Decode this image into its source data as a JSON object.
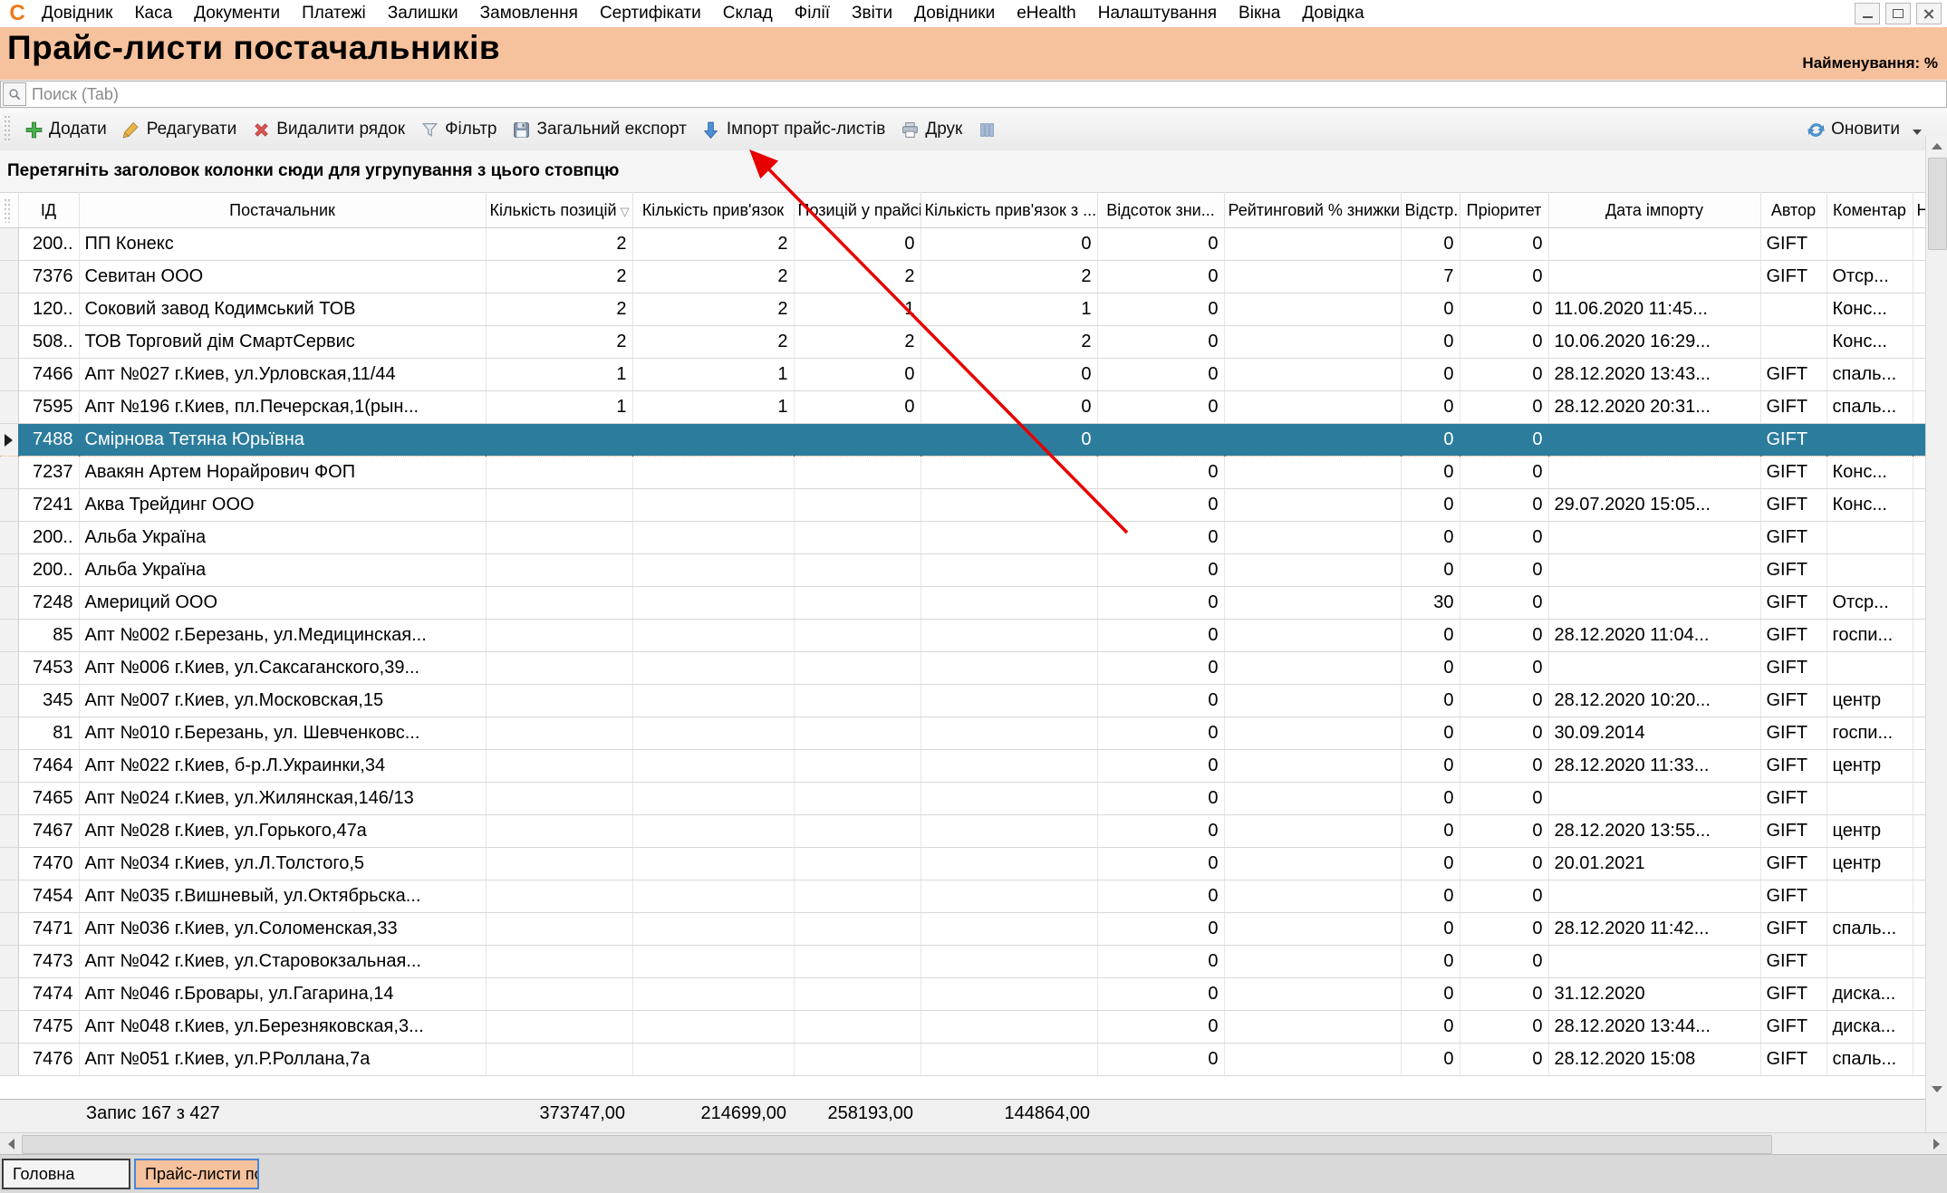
{
  "menu": {
    "items": [
      "Довідник",
      "Каса",
      "Документи",
      "Платежі",
      "Залишки",
      "Замовлення",
      "Сертифікати",
      "Склад",
      "Філії",
      "Звіти",
      "Довідники",
      "eHealth",
      "Налаштування",
      "Вікна",
      "Довідка"
    ]
  },
  "header": {
    "title": "Прайс-листи постачальників",
    "right_label": "Найменування: %"
  },
  "search": {
    "placeholder": "Поиск (Tab)"
  },
  "toolbar": {
    "buttons": [
      {
        "label": "Додати",
        "icon": "add-plus-icon"
      },
      {
        "label": "Редагувати",
        "icon": "edit-pencil-icon"
      },
      {
        "label": "Видалити рядок",
        "icon": "delete-x-icon"
      },
      {
        "label": "Фільтр",
        "icon": "filter-funnel-icon"
      },
      {
        "label": "Загальний експорт",
        "icon": "export-floppy-icon"
      },
      {
        "label": "Імпорт прайс-листів",
        "icon": "import-arrow-icon"
      },
      {
        "label": "Друк",
        "icon": "print-printer-icon"
      },
      {
        "label": "",
        "icon": "columns-grid-icon"
      }
    ],
    "refresh": {
      "label": "Оновити",
      "icon": "refresh-icon"
    }
  },
  "group_panel": {
    "text": "Перетягніть заголовок колонки сюди для угрупування з цього стовпцю"
  },
  "grid": {
    "columns": [
      {
        "key": "indicator",
        "label": ""
      },
      {
        "key": "id",
        "label": "ІД",
        "align": "right"
      },
      {
        "key": "name",
        "label": "Постачальник",
        "align": "left"
      },
      {
        "key": "qty_pos",
        "label": "Кількість позицій",
        "align": "right",
        "filter": true
      },
      {
        "key": "qty_links",
        "label": "Кількість прив'язок",
        "align": "right"
      },
      {
        "key": "pos_in_price",
        "label": "Позицій у прайсі",
        "align": "right"
      },
      {
        "key": "links_with",
        "label": "Кількість прив'язок з ...",
        "align": "right"
      },
      {
        "key": "discount_pct",
        "label": "Відсоток зни...",
        "align": "right"
      },
      {
        "key": "rating_pct",
        "label": "Рейтинговий % знижки",
        "align": "right"
      },
      {
        "key": "delay",
        "label": "Відстр...",
        "align": "right"
      },
      {
        "key": "priority",
        "label": "Пріоритет",
        "align": "right"
      },
      {
        "key": "import_date",
        "label": "Дата імпорту",
        "align": "left"
      },
      {
        "key": "author",
        "label": "Автор",
        "align": "left"
      },
      {
        "key": "comment",
        "label": "Коментар",
        "align": "left"
      },
      {
        "key": "extra",
        "label": "Н",
        "align": "left"
      }
    ],
    "rows": [
      {
        "id": "200..",
        "name": "ПП Конекс",
        "qty_pos": "2",
        "qty_links": "2",
        "pos_in_price": "0",
        "links_with": "0",
        "discount_pct": "0",
        "delay": "0",
        "priority": "0",
        "import_date": "",
        "author": "GIFT",
        "comment": ""
      },
      {
        "id": "7376",
        "name": "Севитан ООО",
        "qty_pos": "2",
        "qty_links": "2",
        "pos_in_price": "2",
        "links_with": "2",
        "discount_pct": "0",
        "delay": "7",
        "priority": "0",
        "import_date": "",
        "author": "GIFT",
        "comment": "Отср..."
      },
      {
        "id": "120..",
        "name": "Соковий завод Кодимський  ТОВ",
        "qty_pos": "2",
        "qty_links": "2",
        "pos_in_price": "1",
        "links_with": "1",
        "discount_pct": "0",
        "delay": "0",
        "priority": "0",
        "import_date": "11.06.2020 11:45...",
        "author": "",
        "comment": "Конс..."
      },
      {
        "id": "508..",
        "name": "ТОВ Торговий дім СмартСервис",
        "qty_pos": "2",
        "qty_links": "2",
        "pos_in_price": "2",
        "links_with": "2",
        "discount_pct": "0",
        "delay": "0",
        "priority": "0",
        "import_date": "10.06.2020 16:29...",
        "author": "",
        "comment": "Конс..."
      },
      {
        "id": "7466",
        "name": "Апт №027 г.Киев, ул.Урловская,11/44",
        "qty_pos": "1",
        "qty_links": "1",
        "pos_in_price": "0",
        "links_with": "0",
        "discount_pct": "0",
        "delay": "0",
        "priority": "0",
        "import_date": "28.12.2020 13:43...",
        "author": "GIFT",
        "comment": "спаль..."
      },
      {
        "id": "7595",
        "name": "Апт №196 г.Киев, пл.Печерская,1(рын...",
        "qty_pos": "1",
        "qty_links": "1",
        "pos_in_price": "0",
        "links_with": "0",
        "discount_pct": "0",
        "delay": "0",
        "priority": "0",
        "import_date": "28.12.2020 20:31...",
        "author": "GIFT",
        "comment": "спаль..."
      },
      {
        "id": "7488",
        "name": "Смірнова Тетяна Юрьївна",
        "links_with": "0",
        "delay": "0",
        "priority": "0",
        "author": "GIFT",
        "selected": true
      },
      {
        "id": "7237",
        "name": "Авакян Артем Норайрович ФОП",
        "discount_pct": "0",
        "delay": "0",
        "priority": "0",
        "author": "GIFT",
        "comment": "Конс..."
      },
      {
        "id": "7241",
        "name": "Аква Трейдинг ООО",
        "discount_pct": "0",
        "delay": "0",
        "priority": "0",
        "import_date": "29.07.2020 15:05...",
        "author": "GIFT",
        "comment": "Конс..."
      },
      {
        "id": "200..",
        "name": "Альба Україна",
        "discount_pct": "0",
        "delay": "0",
        "priority": "0",
        "author": "GIFT"
      },
      {
        "id": "200..",
        "name": "Альба Україна",
        "discount_pct": "0",
        "delay": "0",
        "priority": "0",
        "author": "GIFT"
      },
      {
        "id": "7248",
        "name": "Америций ООО",
        "discount_pct": "0",
        "delay": "30",
        "priority": "0",
        "author": "GIFT",
        "comment": "Отср..."
      },
      {
        "id": "85",
        "name": "Апт №002 г.Березань, ул.Медицинская...",
        "discount_pct": "0",
        "delay": "0",
        "priority": "0",
        "import_date": "28.12.2020 11:04...",
        "author": "GIFT",
        "comment": "госпи..."
      },
      {
        "id": "7453",
        "name": "Апт №006 г.Киев, ул.Саксаганского,39...",
        "discount_pct": "0",
        "delay": "0",
        "priority": "0",
        "author": "GIFT"
      },
      {
        "id": "345",
        "name": "Апт №007 г.Киев, ул.Московская,15",
        "discount_pct": "0",
        "delay": "0",
        "priority": "0",
        "import_date": "28.12.2020 10:20...",
        "author": "GIFT",
        "comment": "центр"
      },
      {
        "id": "81",
        "name": "Апт №010 г.Березань, ул. Шевченковс...",
        "discount_pct": "0",
        "delay": "0",
        "priority": "0",
        "import_date": "30.09.2014",
        "author": "GIFT",
        "comment": "госпи..."
      },
      {
        "id": "7464",
        "name": "Апт №022 г.Киев, б-р.Л.Украинки,34",
        "discount_pct": "0",
        "delay": "0",
        "priority": "0",
        "import_date": "28.12.2020 11:33...",
        "author": "GIFT",
        "comment": "центр"
      },
      {
        "id": "7465",
        "name": "Апт №024 г.Киев, ул.Жилянская,146/13",
        "discount_pct": "0",
        "delay": "0",
        "priority": "0",
        "author": "GIFT"
      },
      {
        "id": "7467",
        "name": "Апт №028 г.Киев, ул.Горького,47а",
        "discount_pct": "0",
        "delay": "0",
        "priority": "0",
        "import_date": "28.12.2020 13:55...",
        "author": "GIFT",
        "comment": "центр"
      },
      {
        "id": "7470",
        "name": "Апт №034 г.Киев, ул.Л.Толстого,5",
        "discount_pct": "0",
        "delay": "0",
        "priority": "0",
        "import_date": "20.01.2021",
        "author": "GIFT",
        "comment": "центр"
      },
      {
        "id": "7454",
        "name": "Апт №035 г.Вишневый, ул.Октябрьска...",
        "discount_pct": "0",
        "delay": "0",
        "priority": "0",
        "author": "GIFT"
      },
      {
        "id": "7471",
        "name": "Апт №036 г.Киев, ул.Соломенская,33",
        "discount_pct": "0",
        "delay": "0",
        "priority": "0",
        "import_date": "28.12.2020 11:42...",
        "author": "GIFT",
        "comment": "спаль..."
      },
      {
        "id": "7473",
        "name": "Апт №042 г.Киев, ул.Старовокзальная...",
        "discount_pct": "0",
        "delay": "0",
        "priority": "0",
        "author": "GIFT"
      },
      {
        "id": "7474",
        "name": "Апт №046 г.Бровары, ул.Гагарина,14",
        "discount_pct": "0",
        "delay": "0",
        "priority": "0",
        "import_date": "31.12.2020",
        "author": "GIFT",
        "comment": "диска..."
      },
      {
        "id": "7475",
        "name": "Апт №048 г.Киев, ул.Березняковская,3...",
        "discount_pct": "0",
        "delay": "0",
        "priority": "0",
        "import_date": "28.12.2020 13:44...",
        "author": "GIFT",
        "comment": "диска..."
      },
      {
        "id": "7476",
        "name": "Апт №051 г.Киев, ул.Р.Роллана,7а",
        "discount_pct": "0",
        "delay": "0",
        "priority": "0",
        "import_date": "28.12.2020 15:08",
        "author": "GIFT",
        "comment": "спаль..."
      }
    ]
  },
  "footer": {
    "record_label": "Запис 167 з 427",
    "sums": [
      "373747,00",
      "214699,00",
      "258193,00",
      "144864,00"
    ]
  },
  "tabs": [
    {
      "label": "Головна",
      "active": false
    },
    {
      "label": "Прайс-листи постача ...",
      "active": true
    }
  ],
  "colors": {
    "title_bar_peach": "#f6c29d",
    "selected_row_teal": "#2b7c9d",
    "annotation_arrow_red": "#e60000",
    "active_tab_border_blue": "#4a86d8"
  }
}
